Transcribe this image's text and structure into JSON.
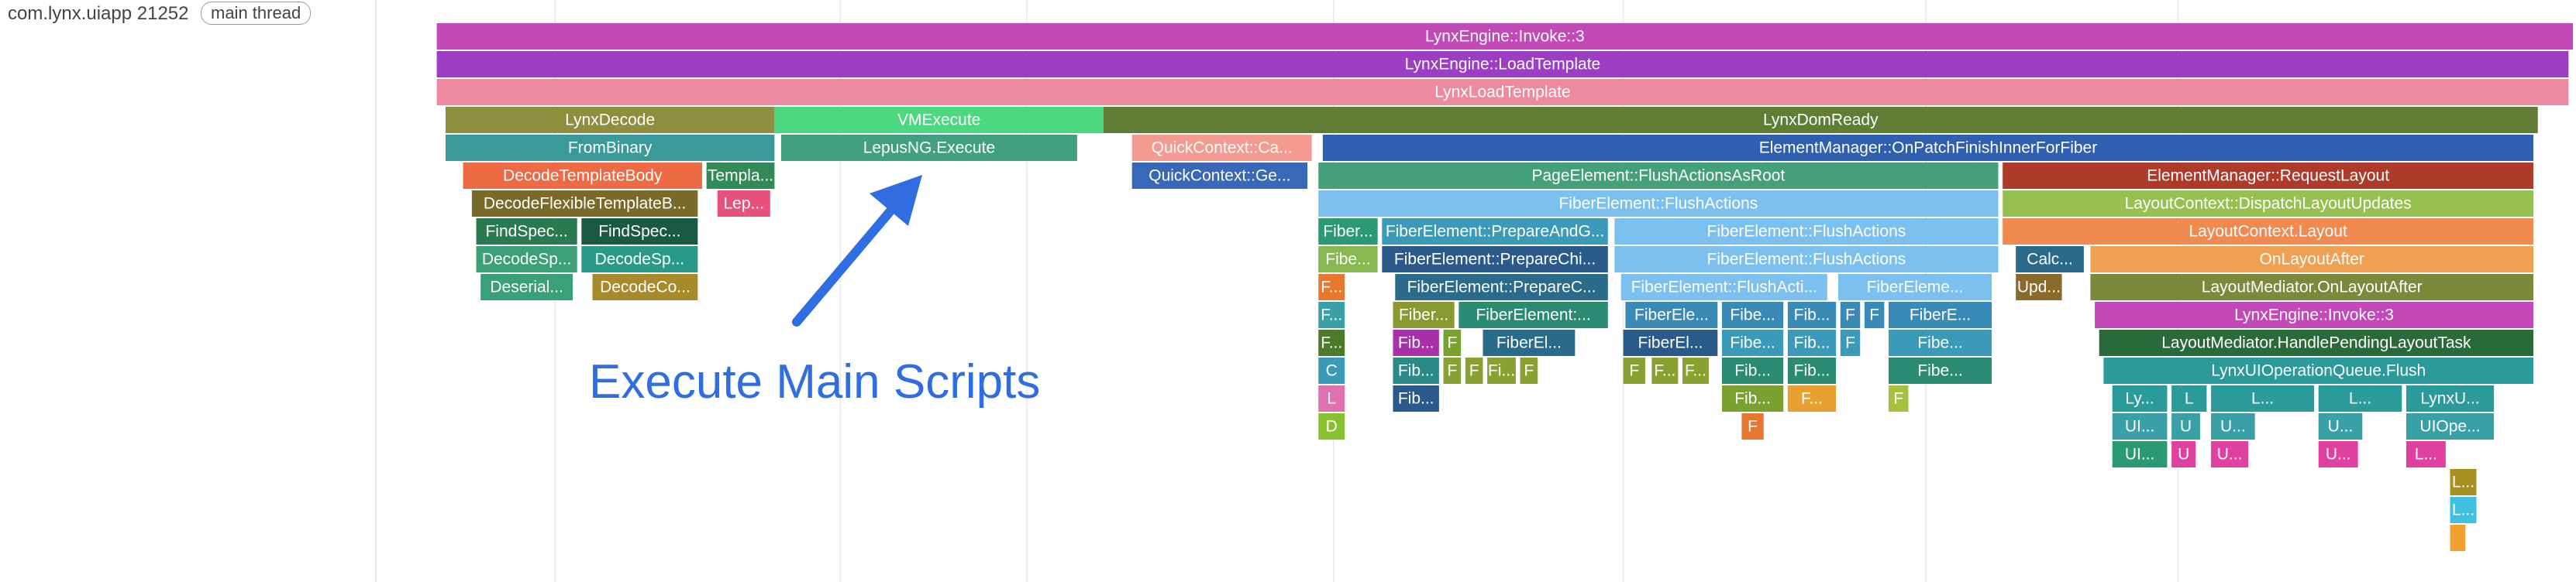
{
  "track": {
    "process": "com.lynx.uiapp 21252",
    "thread": "main thread"
  },
  "annotation": {
    "text": "Execute Main Scripts",
    "color": "#2f6de1"
  },
  "timeline": {
    "start": 0,
    "end": 1000,
    "gridlines": [
      80,
      210,
      295,
      435,
      567,
      705,
      820,
      1020,
      1150,
      1245,
      1410
    ]
  },
  "slices": [
    {
      "label": "LynxEngine::Invoke::3",
      "start": 26,
      "end": 1000,
      "depth": 0,
      "color": "#c449b8"
    },
    {
      "label": "LynxEngine::LoadTemplate",
      "start": 26,
      "end": 998,
      "depth": 1,
      "color": "#9c3dc4"
    },
    {
      "label": "LynxLoadTemplate",
      "start": 26,
      "end": 998,
      "depth": 2,
      "color": "#ee8aa0"
    },
    {
      "label": "LynxDecode",
      "start": 30,
      "end": 180,
      "depth": 3,
      "color": "#8e8f3e"
    },
    {
      "label": "VMExecute",
      "start": 180,
      "end": 330,
      "depth": 3,
      "color": "#4cd880"
    },
    {
      "label": "LynxDomReady",
      "start": 330,
      "end": 984,
      "depth": 3,
      "color": "#5f7d35"
    },
    {
      "label": "FromBinary",
      "start": 30,
      "end": 180,
      "depth": 4,
      "color": "#3a9a9a"
    },
    {
      "label": "LepusNG.Execute",
      "start": 183,
      "end": 318,
      "depth": 4,
      "color": "#41a082"
    },
    {
      "label": "QuickContext::Ca...",
      "start": 343,
      "end": 425,
      "depth": 4,
      "color": "#f49a91"
    },
    {
      "label": "ElementManager::OnPatchFinishInnerForFiber",
      "start": 430,
      "end": 982,
      "depth": 4,
      "color": "#2f5fb0"
    },
    {
      "label": "DecodeTemplateBody",
      "start": 38,
      "end": 147,
      "depth": 5,
      "color": "#ee6a45"
    },
    {
      "label": "Templa...",
      "start": 149,
      "end": 180,
      "depth": 5,
      "color": "#328a58"
    },
    {
      "label": "QuickContext::Ge...",
      "start": 343,
      "end": 423,
      "depth": 5,
      "color": "#3a68b8"
    },
    {
      "label": "PageElement::FlushActionsAsRoot",
      "start": 428,
      "end": 738,
      "depth": 5,
      "color": "#44a07a"
    },
    {
      "label": "ElementManager::RequestLayout",
      "start": 740,
      "end": 982,
      "depth": 5,
      "color": "#ae3a2a"
    },
    {
      "label": "DecodeFlexibleTemplateB...",
      "start": 42,
      "end": 145,
      "depth": 6,
      "color": "#7a6a2a"
    },
    {
      "label": "Lep...",
      "start": 154,
      "end": 178,
      "depth": 6,
      "color": "#e8507e"
    },
    {
      "label": "FiberElement::FlushActions",
      "start": 428,
      "end": 738,
      "depth": 6,
      "color": "#7cc0f0"
    },
    {
      "label": "LayoutContext::DispatchLayoutUpdates",
      "start": 740,
      "end": 982,
      "depth": 6,
      "color": "#98c050"
    },
    {
      "label": "FindSpec...",
      "start": 44,
      "end": 90,
      "depth": 7,
      "color": "#2a7a50"
    },
    {
      "label": "FindSpec...",
      "start": 92,
      "end": 145,
      "depth": 7,
      "color": "#1a5a42"
    },
    {
      "label": "Fiber...",
      "start": 428,
      "end": 455,
      "depth": 7,
      "color": "#2a9a72"
    },
    {
      "label": "FiberElement::PrepareAndG...",
      "start": 457,
      "end": 560,
      "depth": 7,
      "color": "#3a9ab8"
    },
    {
      "label": "FiberElement::FlushActions",
      "start": 563,
      "end": 738,
      "depth": 7,
      "color": "#7cc0f0"
    },
    {
      "label": "LayoutContext.Layout",
      "start": 740,
      "end": 982,
      "depth": 7,
      "color": "#f08a50"
    },
    {
      "label": "DecodeSp...",
      "start": 44,
      "end": 90,
      "depth": 8,
      "color": "#3aa078"
    },
    {
      "label": "DecodeSp...",
      "start": 92,
      "end": 145,
      "depth": 8,
      "color": "#2a9a88"
    },
    {
      "label": "Fibe...",
      "start": 428,
      "end": 455,
      "depth": 8,
      "color": "#88b850"
    },
    {
      "label": "FiberElement::PrepareChi...",
      "start": 457,
      "end": 560,
      "depth": 8,
      "color": "#2a5a8a"
    },
    {
      "label": "FiberElement::FlushActions",
      "start": 563,
      "end": 738,
      "depth": 8,
      "color": "#7cc0f0"
    },
    {
      "label": "Calc...",
      "start": 746,
      "end": 777,
      "depth": 8,
      "color": "#2a6a8a"
    },
    {
      "label": "OnLayoutAfter",
      "start": 780,
      "end": 982,
      "depth": 8,
      "color": "#f0a050"
    },
    {
      "label": "Deserial...",
      "start": 46,
      "end": 88,
      "depth": 9,
      "color": "#3aa078"
    },
    {
      "label": "DecodeCo...",
      "start": 97,
      "end": 145,
      "depth": 9,
      "color": "#a88a2a"
    },
    {
      "label": "F...",
      "start": 428,
      "end": 440,
      "depth": 9,
      "color": "#e87830"
    },
    {
      "label": "FiberElement::PrepareC...",
      "start": 463,
      "end": 560,
      "depth": 9,
      "color": "#2a6a8a"
    },
    {
      "label": "FiberElement::FlushActi...",
      "start": 566,
      "end": 660,
      "depth": 9,
      "color": "#7cc0f0"
    },
    {
      "label": "FiberEleme...",
      "start": 665,
      "end": 735,
      "depth": 9,
      "color": "#7cc0f0"
    },
    {
      "label": "Upd...",
      "start": 746,
      "end": 767,
      "depth": 9,
      "color": "#8a6a2a"
    },
    {
      "label": "LayoutMediator.OnLayoutAfter",
      "start": 780,
      "end": 982,
      "depth": 9,
      "color": "#7a8a3a"
    },
    {
      "label": "F...",
      "start": 428,
      "end": 440,
      "depth": 10,
      "color": "#3aa0a8"
    },
    {
      "label": "Fiber...",
      "start": 462,
      "end": 490,
      "depth": 10,
      "color": "#8a9a30"
    },
    {
      "label": "FiberElement:...",
      "start": 492,
      "end": 560,
      "depth": 10,
      "color": "#2a8a72"
    },
    {
      "label": "FiberEle...",
      "start": 568,
      "end": 610,
      "depth": 10,
      "color": "#3a8ab8"
    },
    {
      "label": "Fibe...",
      "start": 612,
      "end": 640,
      "depth": 10,
      "color": "#3a8ab8"
    },
    {
      "label": "Fib...",
      "start": 642,
      "end": 664,
      "depth": 10,
      "color": "#3a8ab8"
    },
    {
      "label": "F",
      "start": 666,
      "end": 675,
      "depth": 10,
      "color": "#3a8ab8"
    },
    {
      "label": "F",
      "start": 677,
      "end": 686,
      "depth": 10,
      "color": "#3a8ab8"
    },
    {
      "label": "FiberE...",
      "start": 688,
      "end": 735,
      "depth": 10,
      "color": "#3a8ab8"
    },
    {
      "label": "LynxEngine::Invoke::3",
      "start": 782,
      "end": 982,
      "depth": 10,
      "color": "#c449b8"
    },
    {
      "label": "F...",
      "start": 428,
      "end": 440,
      "depth": 11,
      "color": "#4a7a2a"
    },
    {
      "label": "Fib...",
      "start": 462,
      "end": 483,
      "depth": 11,
      "color": "#a830a8"
    },
    {
      "label": "F",
      "start": 485,
      "end": 493,
      "depth": 11,
      "color": "#7aa030"
    },
    {
      "label": "FiberEl...",
      "start": 503,
      "end": 545,
      "depth": 11,
      "color": "#2a6a8a"
    },
    {
      "label": "FiberEl...",
      "start": 567,
      "end": 610,
      "depth": 11,
      "color": "#2a5a8a"
    },
    {
      "label": "Fibe...",
      "start": 612,
      "end": 640,
      "depth": 11,
      "color": "#3a9ab8"
    },
    {
      "label": "Fib...",
      "start": 642,
      "end": 664,
      "depth": 11,
      "color": "#3a9ab8"
    },
    {
      "label": "F",
      "start": 666,
      "end": 675,
      "depth": 11,
      "color": "#3a9ab8"
    },
    {
      "label": "Fibe...",
      "start": 688,
      "end": 735,
      "depth": 11,
      "color": "#3a9ab8"
    },
    {
      "label": "LayoutMediator.HandlePendingLayoutTask",
      "start": 784,
      "end": 982,
      "depth": 11,
      "color": "#2a6a3a"
    },
    {
      "label": "C",
      "start": 428,
      "end": 440,
      "depth": 12,
      "color": "#3a9ab8"
    },
    {
      "label": "Fib...",
      "start": 462,
      "end": 483,
      "depth": 12,
      "color": "#2a8a8a"
    },
    {
      "label": "F",
      "start": 485,
      "end": 493,
      "depth": 12,
      "color": "#8aa030"
    },
    {
      "label": "F",
      "start": 495,
      "end": 503,
      "depth": 12,
      "color": "#8aa030"
    },
    {
      "label": "Fi...",
      "start": 505,
      "end": 518,
      "depth": 12,
      "color": "#8aa030"
    },
    {
      "label": "F",
      "start": 520,
      "end": 528,
      "depth": 12,
      "color": "#8aa030"
    },
    {
      "label": "F",
      "start": 567,
      "end": 577,
      "depth": 12,
      "color": "#8aa030"
    },
    {
      "label": "F...",
      "start": 580,
      "end": 592,
      "depth": 12,
      "color": "#8aa030"
    },
    {
      "label": "F...",
      "start": 594,
      "end": 606,
      "depth": 12,
      "color": "#8aa030"
    },
    {
      "label": "Fib...",
      "start": 612,
      "end": 640,
      "depth": 12,
      "color": "#2a8a72"
    },
    {
      "label": "Fib...",
      "start": 642,
      "end": 664,
      "depth": 12,
      "color": "#2a8a72"
    },
    {
      "label": "Fibe...",
      "start": 688,
      "end": 735,
      "depth": 12,
      "color": "#2a8a72"
    },
    {
      "label": "LynxUIOperationQueue.Flush",
      "start": 786,
      "end": 982,
      "depth": 12,
      "color": "#2a9a9a"
    },
    {
      "label": "L",
      "start": 428,
      "end": 440,
      "depth": 13,
      "color": "#e070b0"
    },
    {
      "label": "Fib...",
      "start": 462,
      "end": 483,
      "depth": 13,
      "color": "#2a5a8a"
    },
    {
      "label": "Fib...",
      "start": 612,
      "end": 640,
      "depth": 13,
      "color": "#7aa030"
    },
    {
      "label": "F...",
      "start": 642,
      "end": 664,
      "depth": 13,
      "color": "#e8a030"
    },
    {
      "label": "F",
      "start": 688,
      "end": 697,
      "depth": 13,
      "color": "#a8c040"
    },
    {
      "label": "Ly...",
      "start": 790,
      "end": 815,
      "depth": 13,
      "color": "#2a9a9a"
    },
    {
      "label": "L",
      "start": 817,
      "end": 833,
      "depth": 13,
      "color": "#2a9a9a"
    },
    {
      "label": "L...",
      "start": 835,
      "end": 882,
      "depth": 13,
      "color": "#2a9a9a"
    },
    {
      "label": "L...",
      "start": 884,
      "end": 922,
      "depth": 13,
      "color": "#2a9a9a"
    },
    {
      "label": "LynxU...",
      "start": 924,
      "end": 964,
      "depth": 13,
      "color": "#2a9a9a"
    },
    {
      "label": "D",
      "start": 428,
      "end": 440,
      "depth": 14,
      "color": "#88c030"
    },
    {
      "label": "F",
      "start": 621,
      "end": 631,
      "depth": 14,
      "color": "#e87830"
    },
    {
      "label": "UI...",
      "start": 790,
      "end": 815,
      "depth": 14,
      "color": "#3aa0a8"
    },
    {
      "label": "U",
      "start": 817,
      "end": 830,
      "depth": 14,
      "color": "#3aa0a8"
    },
    {
      "label": "U...",
      "start": 835,
      "end": 855,
      "depth": 14,
      "color": "#3aa0a8"
    },
    {
      "label": "U...",
      "start": 884,
      "end": 904,
      "depth": 14,
      "color": "#3aa0a8"
    },
    {
      "label": "UIOpe...",
      "start": 924,
      "end": 964,
      "depth": 14,
      "color": "#3aa0a8"
    },
    {
      "label": "UI...",
      "start": 790,
      "end": 815,
      "depth": 15,
      "color": "#2a9a72"
    },
    {
      "label": "U",
      "start": 817,
      "end": 828,
      "depth": 15,
      "color": "#e040a0"
    },
    {
      "label": "U...",
      "start": 835,
      "end": 852,
      "depth": 15,
      "color": "#e040a0"
    },
    {
      "label": "U...",
      "start": 884,
      "end": 902,
      "depth": 15,
      "color": "#e040a0"
    },
    {
      "label": "L...",
      "start": 924,
      "end": 942,
      "depth": 15,
      "color": "#e040a0"
    },
    {
      "label": "L...",
      "start": 944,
      "end": 956,
      "depth": 16,
      "color": "#a89020"
    },
    {
      "label": "L...",
      "start": 944,
      "end": 956,
      "depth": 17,
      "color": "#40c0e0"
    },
    {
      "label": "",
      "start": 944,
      "end": 951,
      "depth": 18,
      "color": "#f0a030"
    }
  ]
}
